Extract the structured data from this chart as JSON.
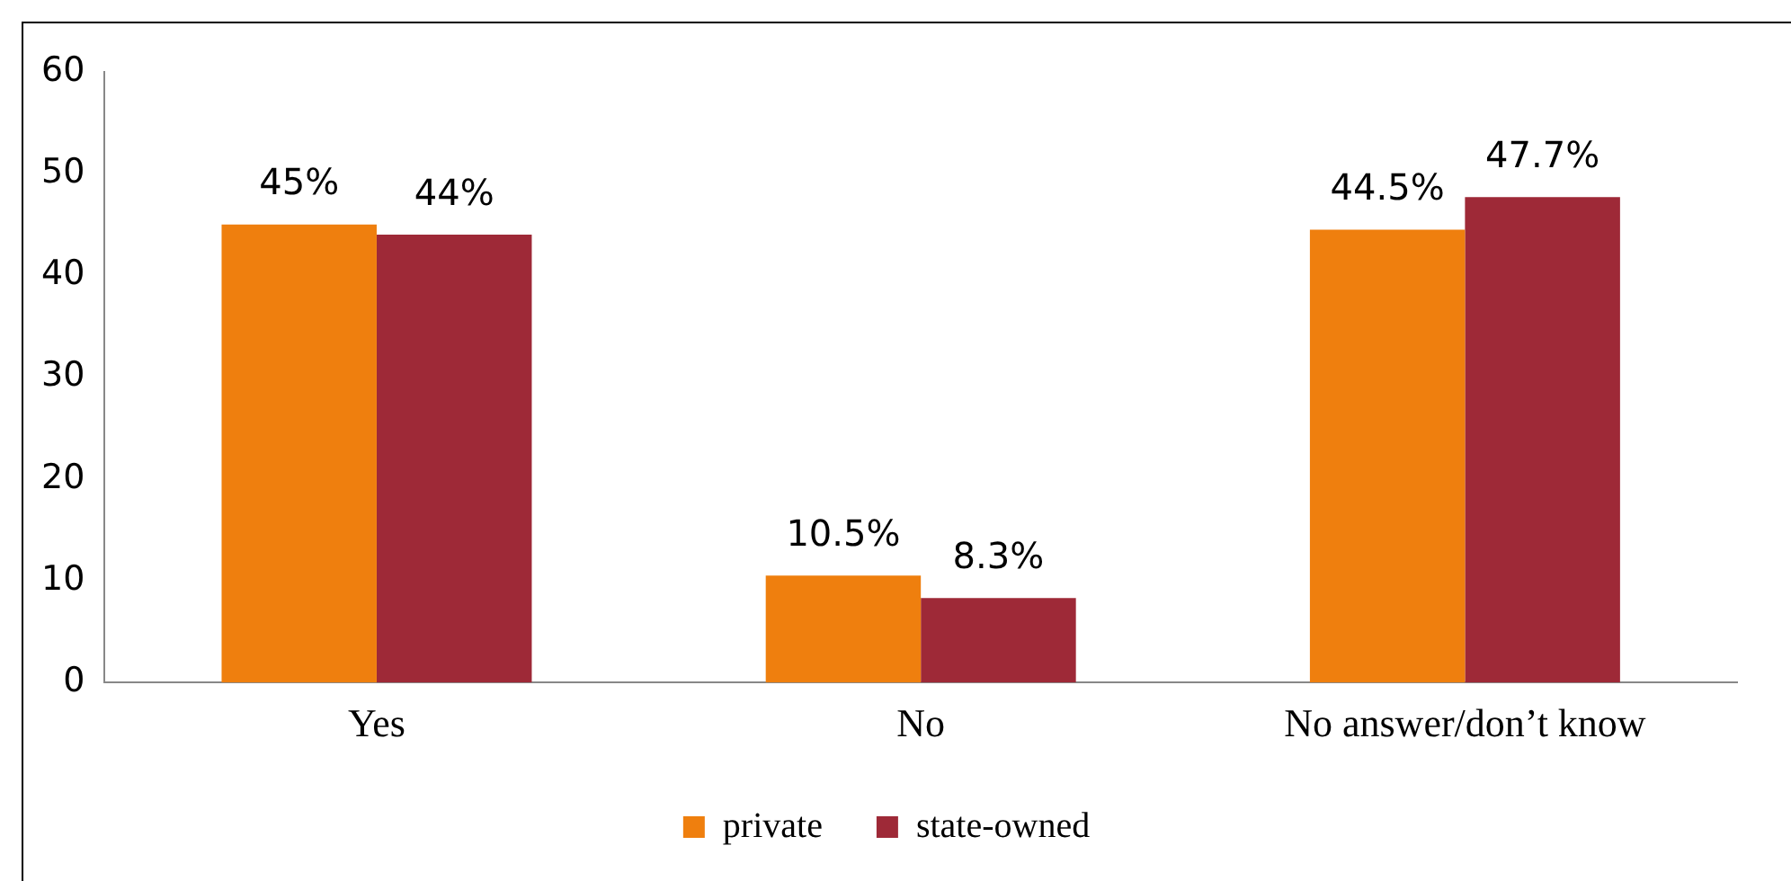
{
  "chart_data": {
    "type": "bar",
    "categories": [
      "Yes",
      "No",
      "No answer/don’t know"
    ],
    "series": [
      {
        "name": "private",
        "color": "#ef7f0e",
        "values": [
          45,
          10.5,
          44.5
        ],
        "value_labels": [
          "45%",
          "10.5%",
          "44.5%"
        ]
      },
      {
        "name": "state-owned",
        "color": "#9e2937",
        "values": [
          44,
          8.3,
          47.7
        ],
        "value_labels": [
          "44%",
          "8.3%",
          "47.7%"
        ]
      }
    ],
    "ylim": [
      0,
      60
    ],
    "yticks": [
      0,
      10,
      20,
      30,
      40,
      50,
      60
    ],
    "grid": false,
    "legend": "bottom"
  }
}
